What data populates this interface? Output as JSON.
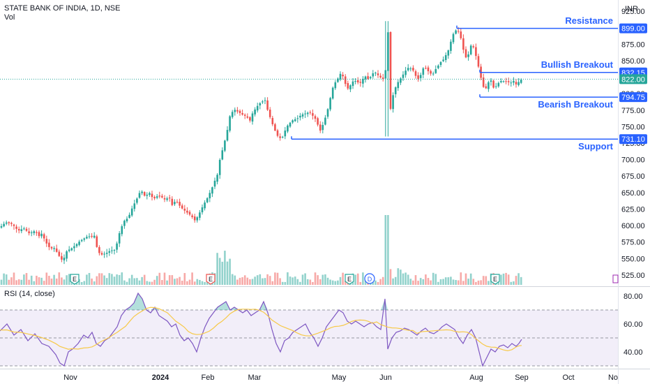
{
  "header": {
    "title": "STATE BANK OF INDIA, 1D, NSE",
    "volume_label": "Vol",
    "currency": "INR"
  },
  "chart_data": {
    "type": "candlestick",
    "x_labels": [
      "Nov",
      "2024",
      "Feb",
      "Mar",
      "May",
      "Jun",
      "Aug",
      "Sep",
      "Oct",
      "No"
    ],
    "y_ticks": [
      525,
      550,
      575,
      600,
      625,
      650,
      675,
      700,
      725,
      750,
      775,
      800,
      825,
      850,
      875,
      900,
      925
    ],
    "ylim": [
      508,
      942
    ],
    "price_path": [
      [
        0,
        597
      ],
      [
        8,
        605
      ],
      [
        18,
        602
      ],
      [
        26,
        592
      ],
      [
        34,
        596
      ],
      [
        42,
        588
      ],
      [
        50,
        592
      ],
      [
        56,
        584
      ],
      [
        60,
        588
      ],
      [
        66,
        574
      ],
      [
        72,
        565
      ],
      [
        78,
        566
      ],
      [
        84,
        555
      ],
      [
        90,
        546
      ],
      [
        96,
        562
      ],
      [
        102,
        565
      ],
      [
        108,
        570
      ],
      [
        114,
        576
      ],
      [
        120,
        580
      ],
      [
        126,
        584
      ],
      [
        132,
        583
      ],
      [
        136,
        585
      ],
      [
        140,
        560
      ],
      [
        146,
        556
      ],
      [
        152,
        558
      ],
      [
        158,
        562
      ],
      [
        164,
        563
      ],
      [
        168,
        574
      ],
      [
        172,
        592
      ],
      [
        178,
        607
      ],
      [
        184,
        612
      ],
      [
        190,
        628
      ],
      [
        196,
        640
      ],
      [
        202,
        654
      ],
      [
        208,
        644
      ],
      [
        214,
        650
      ],
      [
        220,
        640
      ],
      [
        226,
        645
      ],
      [
        232,
        643
      ],
      [
        238,
        638
      ],
      [
        242,
        646
      ],
      [
        246,
        630
      ],
      [
        252,
        638
      ],
      [
        256,
        632
      ],
      [
        262,
        625
      ],
      [
        268,
        620
      ],
      [
        274,
        615
      ],
      [
        280,
        607
      ],
      [
        286,
        619
      ],
      [
        292,
        632
      ],
      [
        298,
        643
      ],
      [
        304,
        657
      ],
      [
        308,
        668
      ],
      [
        312,
        678
      ],
      [
        316,
        705
      ],
      [
        320,
        718
      ],
      [
        326,
        745
      ],
      [
        330,
        768
      ],
      [
        336,
        776
      ],
      [
        342,
        772
      ],
      [
        348,
        768
      ],
      [
        354,
        765
      ],
      [
        358,
        758
      ],
      [
        362,
        770
      ],
      [
        368,
        780
      ],
      [
        374,
        787
      ],
      [
        380,
        790
      ],
      [
        384,
        774
      ],
      [
        388,
        762
      ],
      [
        392,
        750
      ],
      [
        396,
        740
      ],
      [
        400,
        732
      ],
      [
        406,
        735
      ],
      [
        410,
        748
      ],
      [
        414,
        754
      ],
      [
        420,
        760
      ],
      [
        426,
        762
      ],
      [
        432,
        768
      ],
      [
        438,
        770
      ],
      [
        444,
        772
      ],
      [
        448,
        767
      ],
      [
        452,
        762
      ],
      [
        456,
        752
      ],
      [
        460,
        742
      ],
      [
        464,
        757
      ],
      [
        468,
        768
      ],
      [
        472,
        785
      ],
      [
        476,
        806
      ],
      [
        480,
        816
      ],
      [
        484,
        822
      ],
      [
        488,
        830
      ],
      [
        492,
        826
      ],
      [
        496,
        812
      ],
      [
        500,
        806
      ],
      [
        504,
        817
      ],
      [
        508,
        820
      ],
      [
        512,
        818
      ],
      [
        516,
        815
      ],
      [
        520,
        822
      ],
      [
        524,
        826
      ],
      [
        528,
        822
      ],
      [
        532,
        826
      ],
      [
        536,
        833
      ],
      [
        540,
        831
      ],
      [
        544,
        825
      ],
      [
        548,
        824
      ],
      [
        552,
        818
      ],
      [
        556,
        906
      ],
      [
        560,
        777
      ],
      [
        564,
        800
      ],
      [
        568,
        812
      ],
      [
        572,
        820
      ],
      [
        576,
        825
      ],
      [
        580,
        833
      ],
      [
        586,
        840
      ],
      [
        592,
        836
      ],
      [
        596,
        827
      ],
      [
        600,
        822
      ],
      [
        604,
        830
      ],
      [
        608,
        842
      ],
      [
        612,
        836
      ],
      [
        616,
        832
      ],
      [
        620,
        828
      ],
      [
        624,
        836
      ],
      [
        628,
        842
      ],
      [
        632,
        848
      ],
      [
        636,
        852
      ],
      [
        640,
        860
      ],
      [
        644,
        868
      ],
      [
        648,
        886
      ],
      [
        652,
        895
      ],
      [
        656,
        897
      ],
      [
        660,
        888
      ],
      [
        664,
        868
      ],
      [
        668,
        855
      ],
      [
        672,
        860
      ],
      [
        676,
        876
      ],
      [
        680,
        868
      ],
      [
        684,
        850
      ],
      [
        688,
        832
      ],
      [
        692,
        812
      ],
      [
        696,
        806
      ],
      [
        700,
        817
      ],
      [
        704,
        820
      ],
      [
        708,
        808
      ],
      [
        712,
        812
      ],
      [
        716,
        818
      ],
      [
        720,
        820
      ],
      [
        724,
        818
      ],
      [
        728,
        818
      ],
      [
        732,
        816
      ],
      [
        736,
        820
      ],
      [
        740,
        814
      ],
      [
        744,
        818
      ],
      [
        748,
        822
      ]
    ],
    "events": [
      {
        "label": "E",
        "x": 107
      },
      {
        "label": "E",
        "x": 302
      },
      {
        "label": "E",
        "x": 501
      },
      {
        "label": "D",
        "x": 530
      },
      {
        "label": "E",
        "x": 710
      }
    ],
    "annotations": [
      {
        "label": "Resistance",
        "price": 899.0,
        "price_label": "899.00",
        "x_start": 655
      },
      {
        "label": "Bullish Breakout",
        "price": 832.15,
        "price_label": "832.15",
        "x_start": 688
      },
      {
        "label": "Bearish Breakout",
        "price": 794.75,
        "price_label": "794.75",
        "x_start": 688
      },
      {
        "label": "Support",
        "price": 731.1,
        "price_label": "731.10",
        "x_start": 418
      }
    ],
    "last_price": {
      "value": 822.0,
      "label": "822.00"
    },
    "rsi": {
      "label": "RSI (14, close)",
      "y_ticks": [
        40,
        60,
        80
      ],
      "ylim": [
        28,
        86
      ],
      "band": [
        30,
        70
      ],
      "midline": 50,
      "path": [
        [
          0,
          55
        ],
        [
          10,
          60
        ],
        [
          20,
          52
        ],
        [
          30,
          56
        ],
        [
          40,
          48
        ],
        [
          50,
          53
        ],
        [
          60,
          46
        ],
        [
          70,
          44
        ],
        [
          80,
          38
        ],
        [
          86,
          32
        ],
        [
          92,
          30
        ],
        [
          98,
          40
        ],
        [
          104,
          42
        ],
        [
          112,
          46
        ],
        [
          120,
          52
        ],
        [
          126,
          50
        ],
        [
          132,
          54
        ],
        [
          138,
          46
        ],
        [
          144,
          44
        ],
        [
          150,
          48
        ],
        [
          156,
          50
        ],
        [
          162,
          54
        ],
        [
          168,
          58
        ],
        [
          174,
          66
        ],
        [
          180,
          70
        ],
        [
          186,
          72
        ],
        [
          192,
          75
        ],
        [
          198,
          82
        ],
        [
          204,
          78
        ],
        [
          210,
          70
        ],
        [
          216,
          68
        ],
        [
          222,
          72
        ],
        [
          228,
          66
        ],
        [
          234,
          64
        ],
        [
          240,
          62
        ],
        [
          246,
          58
        ],
        [
          252,
          60
        ],
        [
          258,
          52
        ],
        [
          264,
          48
        ],
        [
          270,
          50
        ],
        [
          276,
          46
        ],
        [
          282,
          40
        ],
        [
          288,
          50
        ],
        [
          294,
          58
        ],
        [
          300,
          64
        ],
        [
          306,
          68
        ],
        [
          312,
          72
        ],
        [
          318,
          74
        ],
        [
          324,
          76
        ],
        [
          330,
          70
        ],
        [
          336,
          72
        ],
        [
          342,
          70
        ],
        [
          348,
          68
        ],
        [
          354,
          70
        ],
        [
          360,
          66
        ],
        [
          366,
          68
        ],
        [
          372,
          70
        ],
        [
          378,
          76
        ],
        [
          384,
          68
        ],
        [
          390,
          56
        ],
        [
          396,
          46
        ],
        [
          402,
          40
        ],
        [
          408,
          48
        ],
        [
          414,
          50
        ],
        [
          420,
          54
        ],
        [
          426,
          56
        ],
        [
          432,
          58
        ],
        [
          438,
          60
        ],
        [
          444,
          54
        ],
        [
          450,
          50
        ],
        [
          456,
          44
        ],
        [
          462,
          50
        ],
        [
          468,
          58
        ],
        [
          474,
          62
        ],
        [
          480,
          66
        ],
        [
          486,
          70
        ],
        [
          492,
          68
        ],
        [
          498,
          62
        ],
        [
          504,
          60
        ],
        [
          510,
          62
        ],
        [
          516,
          60
        ],
        [
          522,
          58
        ],
        [
          528,
          60
        ],
        [
          534,
          61
        ],
        [
          540,
          58
        ],
        [
          546,
          56
        ],
        [
          552,
          78
        ],
        [
          556,
          42
        ],
        [
          562,
          50
        ],
        [
          568,
          54
        ],
        [
          574,
          55
        ],
        [
          580,
          57
        ],
        [
          586,
          56
        ],
        [
          592,
          54
        ],
        [
          598,
          52
        ],
        [
          604,
          55
        ],
        [
          610,
          57
        ],
        [
          616,
          54
        ],
        [
          622,
          53
        ],
        [
          628,
          55
        ],
        [
          634,
          58
        ],
        [
          640,
          60
        ],
        [
          646,
          58
        ],
        [
          652,
          56
        ],
        [
          658,
          50
        ],
        [
          664,
          46
        ],
        [
          670,
          52
        ],
        [
          676,
          56
        ],
        [
          682,
          50
        ],
        [
          688,
          38
        ],
        [
          692,
          30
        ],
        [
          698,
          36
        ],
        [
          704,
          42
        ],
        [
          710,
          40
        ],
        [
          716,
          44
        ],
        [
          722,
          45
        ],
        [
          728,
          43
        ],
        [
          734,
          46
        ],
        [
          740,
          44
        ],
        [
          744,
          46
        ],
        [
          748,
          49
        ]
      ]
    }
  }
}
